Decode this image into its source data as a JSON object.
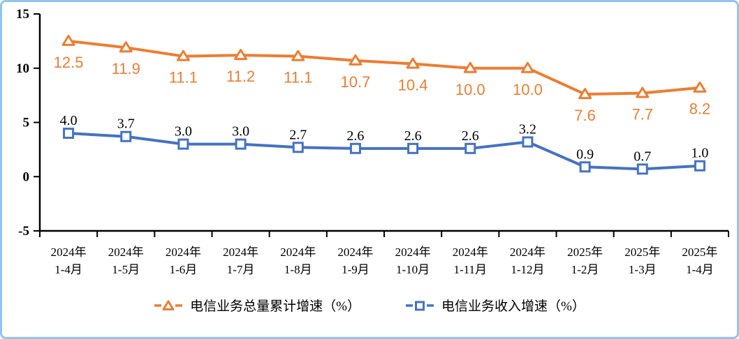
{
  "chart_data": {
    "type": "line",
    "title": "",
    "categories": [
      [
        "2024年",
        "1-4月"
      ],
      [
        "2024年",
        "1-5月"
      ],
      [
        "2024年",
        "1-6月"
      ],
      [
        "2024年",
        "1-7月"
      ],
      [
        "2024年",
        "1-8月"
      ],
      [
        "2024年",
        "1-9月"
      ],
      [
        "2024年",
        "1-10月"
      ],
      [
        "2024年",
        "1-11月"
      ],
      [
        "2024年",
        "1-12月"
      ],
      [
        "2025年",
        "1-2月"
      ],
      [
        "2025年",
        "1-3月"
      ],
      [
        "2025年",
        "1-4月"
      ]
    ],
    "series": [
      {
        "name": "电信业务总量累计增速（%）",
        "values": [
          12.5,
          11.9,
          11.1,
          11.2,
          11.1,
          10.7,
          10.4,
          10.0,
          10.0,
          7.6,
          7.7,
          8.2
        ],
        "color": "#ED7D31",
        "marker": "triangle",
        "label_color": "#ED7D31",
        "label_position": "below"
      },
      {
        "name": "电信业务收入增速（%）",
        "values": [
          4.0,
          3.7,
          3.0,
          3.0,
          2.7,
          2.6,
          2.6,
          2.6,
          3.2,
          0.9,
          0.7,
          1.0
        ],
        "color": "#4472C4",
        "marker": "square",
        "label_color": "#000000",
        "label_position": "above"
      }
    ],
    "y_axis": {
      "min": -5,
      "max": 15,
      "step": 5,
      "tick_labels": [
        "15",
        "10",
        "5",
        "0",
        "-5"
      ]
    },
    "x_axis": {
      "tick_marks": "between-categories"
    },
    "legend_position": "bottom",
    "grid": false,
    "axis_color": "#000000",
    "label_decimals": 1
  },
  "frame": {
    "border_color": "#93C4ED",
    "background": "#FFFFFF"
  }
}
